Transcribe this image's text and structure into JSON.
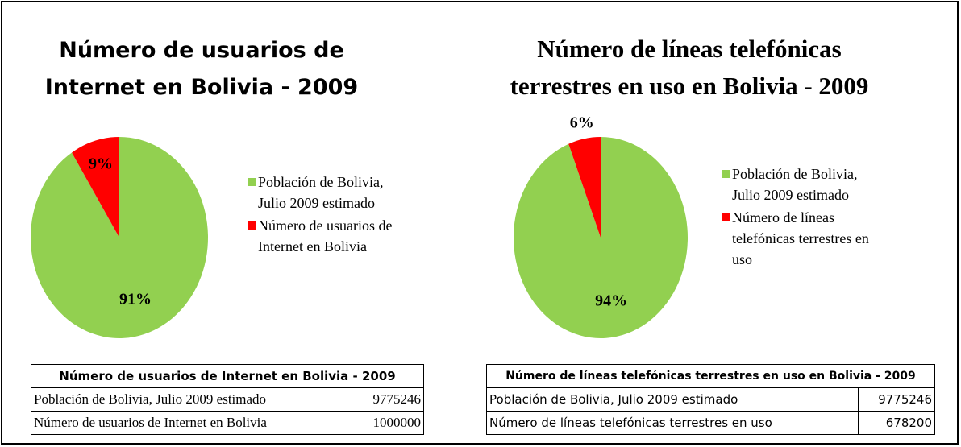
{
  "chart_data": [
    {
      "type": "pie",
      "title": "Número de usuarios de Internet en Bolivia - 2009",
      "categories": [
        "Población de Bolivia, Julio 2009 estimado",
        "Número de usuarios de Internet en Bolivia"
      ],
      "values": [
        91,
        9
      ],
      "value_labels": [
        "91%",
        "9%"
      ],
      "colors": [
        "#92d050",
        "#ff0000"
      ],
      "table": {
        "title": "Número de usuarios de Internet en Bolivia - 2009",
        "rows": [
          [
            "Población de Bolivia, Julio 2009 estimado",
            9775246
          ],
          [
            "Número de usuarios de Internet en Bolivia",
            1000000
          ]
        ]
      }
    },
    {
      "type": "pie",
      "title": "Número de líneas telefónicas terrestres en uso en Bolivia - 2009",
      "categories": [
        "Población de Bolivia, Julio 2009 estimado",
        "Número de líneas telefónicas terrestres en uso"
      ],
      "values": [
        94,
        6
      ],
      "value_labels": [
        "94%",
        "6%"
      ],
      "colors": [
        "#92d050",
        "#ff0000"
      ],
      "table": {
        "title": "Número de líneas telefónicas terrestres en uso en Bolivia - 2009",
        "rows": [
          [
            "Población de Bolivia, Julio 2009 estimado",
            9775246
          ],
          [
            "Número de líneas telefónicas terrestres en uso",
            678200
          ]
        ]
      }
    }
  ]
}
